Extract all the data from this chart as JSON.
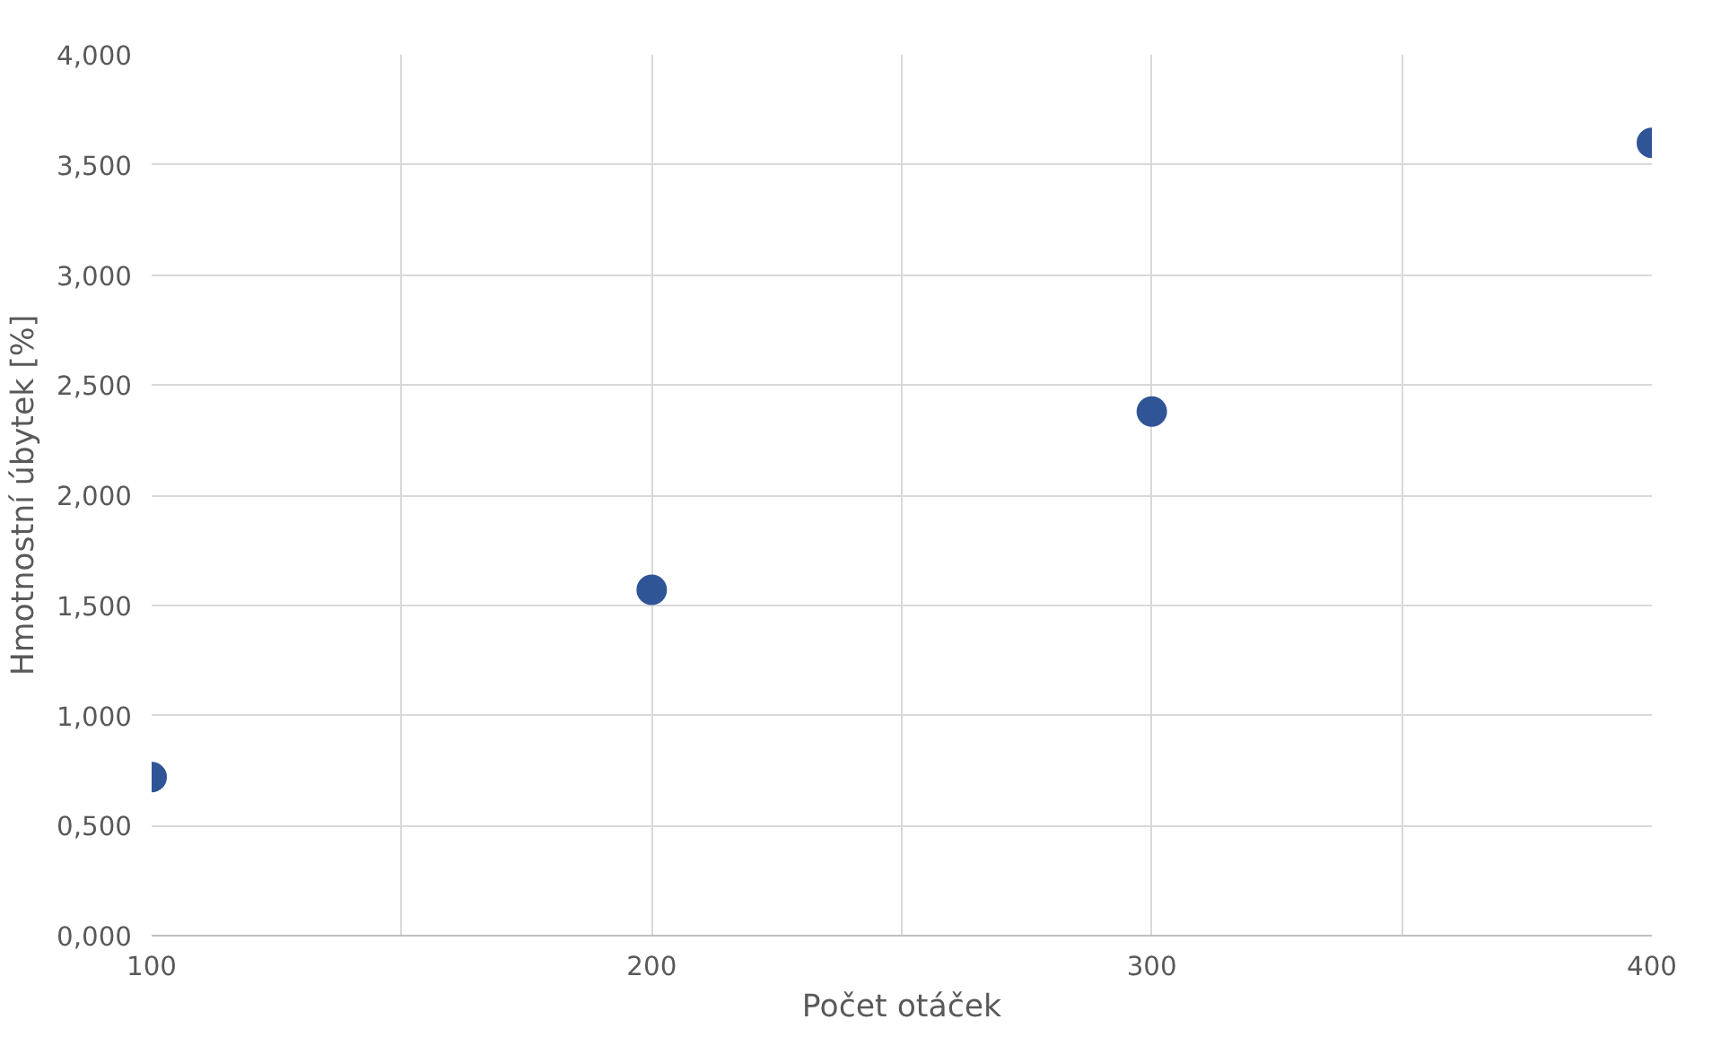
{
  "chart_data": {
    "type": "scatter",
    "xlabel": "Počet otáček",
    "ylabel": "Hmotnostní úbytek [%]",
    "x": [
      100,
      200,
      300,
      400
    ],
    "series": [
      {
        "color": "#2f5597",
        "values": [
          0.72,
          1.57,
          2.38,
          3.6
        ]
      }
    ],
    "xlim": [
      100,
      400
    ],
    "xticks": [
      100,
      {
        "value": 150,
        "label": null
      },
      200,
      {
        "value": 250,
        "label": null
      },
      300,
      {
        "value": 350,
        "label": null
      },
      400
    ],
    "ylim": [
      0,
      4
    ],
    "yticks": [
      {
        "value": 0,
        "label": "0,000"
      },
      {
        "value": 0.5,
        "label": "0,500"
      },
      {
        "value": 1,
        "label": "1,000"
      },
      {
        "value": 1.5,
        "label": "1,500"
      },
      {
        "value": 2,
        "label": "2,000"
      },
      {
        "value": 2.5,
        "label": "2,500"
      },
      {
        "value": 3,
        "label": "3,000"
      },
      {
        "value": 3.5,
        "label": "3,500"
      },
      {
        "value": 4,
        "label": "4,000"
      }
    ],
    "grid": true,
    "marker": "circle"
  }
}
